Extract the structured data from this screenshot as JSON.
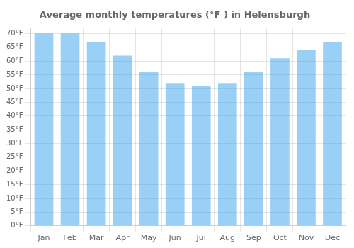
{
  "chart_data": {
    "type": "bar",
    "title": "Average monthly temperatures (°F ) in Helensburgh",
    "categories": [
      "Jan",
      "Feb",
      "Mar",
      "Apr",
      "May",
      "Jun",
      "Jul",
      "Aug",
      "Sep",
      "Oct",
      "Nov",
      "Dec"
    ],
    "values": [
      70,
      70,
      67,
      62,
      56,
      52,
      51,
      52,
      56,
      61,
      64,
      67
    ],
    "ylim": [
      0,
      72
    ],
    "yticks": [
      {
        "value": 0,
        "label": "0°F"
      },
      {
        "value": 5,
        "label": "5°F"
      },
      {
        "value": 10,
        "label": "10°F"
      },
      {
        "value": 15,
        "label": "15°F"
      },
      {
        "value": 20,
        "label": "20°F"
      },
      {
        "value": 25,
        "label": "25°F"
      },
      {
        "value": 30,
        "label": "30°F"
      },
      {
        "value": 35,
        "label": "35°F"
      },
      {
        "value": 40,
        "label": "40°F"
      },
      {
        "value": 45,
        "label": "45°F"
      },
      {
        "value": 50,
        "label": "50°F"
      },
      {
        "value": 55,
        "label": "55°F"
      },
      {
        "value": 60,
        "label": "60°F"
      },
      {
        "value": 65,
        "label": "65°F"
      },
      {
        "value": 70,
        "label": "70°F"
      }
    ],
    "grid": true
  }
}
